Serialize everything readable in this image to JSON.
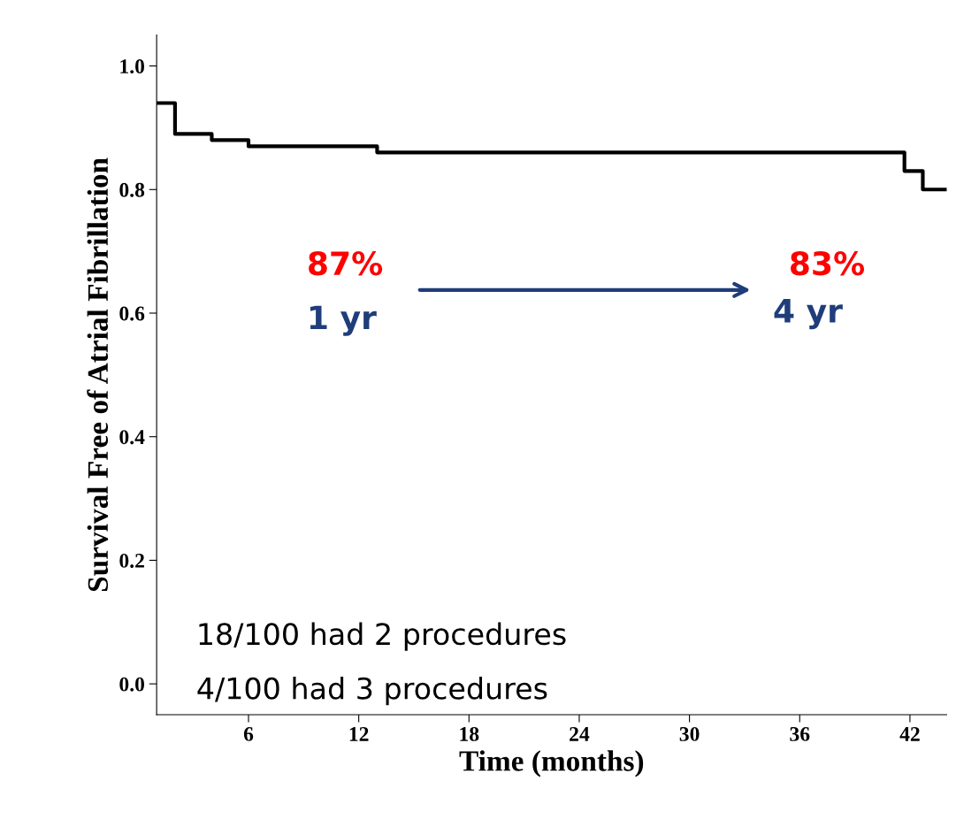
{
  "chart_data": {
    "type": "step",
    "xlabel": "Time (months)",
    "ylabel": "Survival Free of Atrial Fibrillation",
    "x": [
      1,
      2,
      4,
      6,
      13,
      41.7,
      42.7,
      44
    ],
    "series": [
      {
        "color": "#000000",
        "values": [
          0.94,
          0.89,
          0.88,
          0.87,
          0.86,
          0.83,
          0.8,
          0.8
        ]
      }
    ],
    "xlim": [
      1,
      44
    ],
    "xticks": [
      6,
      12,
      18,
      24,
      30,
      36,
      42
    ],
    "ylim": [
      -0.05,
      1.05
    ],
    "yticks": [
      {
        "value": 0,
        "label": "0.0"
      },
      {
        "value": 0.2,
        "label": "0.2"
      },
      {
        "value": 0.4,
        "label": "0.4"
      },
      {
        "value": 0.6,
        "label": "0.6"
      },
      {
        "value": 0.8,
        "label": "0.8"
      },
      {
        "value": 1.0,
        "label": "1.0"
      }
    ],
    "grid": false,
    "legend": false,
    "annotations": [
      "87%",
      "1 yr",
      "83%",
      "4 yr",
      "18/100 had 2 procedures",
      "4/100 had 3 procedures"
    ]
  }
}
